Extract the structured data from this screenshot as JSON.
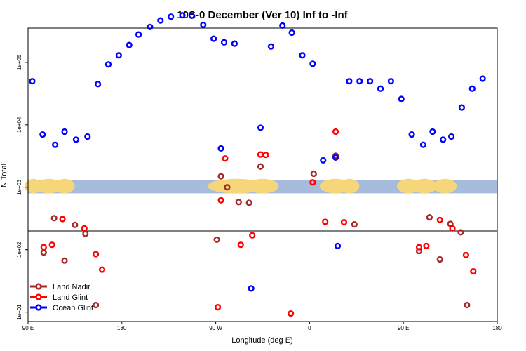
{
  "chart_data": {
    "type": "scatter",
    "title": "10S-0 December (Ver 10)   Inf to -Inf",
    "xlabel": "Longitude (deg E)",
    "ylabel": "N Total",
    "xlim": [
      90,
      540
    ],
    "ylog": true,
    "ylim_log10": [
      0.85,
      5.55
    ],
    "reference_line_y": 200,
    "map_strip": {
      "ymin": 800,
      "ymax": 1300
    },
    "xticks": [
      {
        "value": 90,
        "label": "90 E"
      },
      {
        "value": 180,
        "label": "180"
      },
      {
        "value": 270,
        "label": "90 W"
      },
      {
        "value": 360,
        "label": "0"
      },
      {
        "value": 450,
        "label": "90 E"
      },
      {
        "value": 540,
        "label": "180"
      }
    ],
    "yticks": [
      {
        "value": 10,
        "label": "1e+01"
      },
      {
        "value": 100,
        "label": "1e+02"
      },
      {
        "value": 1000,
        "label": "1e+03"
      },
      {
        "value": 10000,
        "label": "1e+04"
      },
      {
        "value": 100000,
        "label": "1e+05"
      }
    ],
    "series": [
      {
        "name": "Land Nadir",
        "color": "#a52a2a",
        "points": [
          [
            105,
            90
          ],
          [
            115,
            320
          ],
          [
            125,
            67
          ],
          [
            135,
            250
          ],
          [
            145,
            180
          ],
          [
            155,
            13
          ],
          [
            275,
            1500
          ],
          [
            281,
            1000
          ],
          [
            271,
            145
          ],
          [
            292,
            580
          ],
          [
            302,
            565
          ],
          [
            313,
            2150
          ],
          [
            364,
            1650
          ],
          [
            385,
            3200
          ],
          [
            403,
            255
          ],
          [
            465,
            95
          ],
          [
            475,
            330
          ],
          [
            485,
            70
          ],
          [
            495,
            260
          ],
          [
            505,
            190
          ],
          [
            511,
            13
          ]
        ]
      },
      {
        "name": "Land Glint",
        "color": "#ff0000",
        "points": [
          [
            105,
            110
          ],
          [
            113,
            120
          ],
          [
            123,
            310
          ],
          [
            144,
            220
          ],
          [
            155,
            85
          ],
          [
            161,
            48
          ],
          [
            272,
            12
          ],
          [
            275,
            620
          ],
          [
            279,
            2900
          ],
          [
            294,
            120
          ],
          [
            305,
            170
          ],
          [
            313,
            3350
          ],
          [
            318,
            3300
          ],
          [
            342,
            9.5
          ],
          [
            363,
            1200
          ],
          [
            375,
            280
          ],
          [
            385,
            7800
          ],
          [
            393,
            275
          ],
          [
            465,
            110
          ],
          [
            472,
            115
          ],
          [
            485,
            300
          ],
          [
            497,
            220
          ],
          [
            510,
            82
          ],
          [
            517,
            45
          ]
        ]
      },
      {
        "name": "Ocean Glint",
        "color": "#0000ff",
        "points": [
          [
            94,
            50000
          ],
          [
            104,
            7000
          ],
          [
            116,
            4800
          ],
          [
            125,
            7800
          ],
          [
            136,
            5800
          ],
          [
            147,
            6500
          ],
          [
            157,
            45000
          ],
          [
            167,
            93000
          ],
          [
            177,
            130000
          ],
          [
            187,
            190000
          ],
          [
            196,
            280000
          ],
          [
            207,
            370000
          ],
          [
            217,
            470000
          ],
          [
            227,
            540000
          ],
          [
            238,
            570000
          ],
          [
            247,
            560000
          ],
          [
            258,
            400000
          ],
          [
            268,
            240000
          ],
          [
            278,
            210000
          ],
          [
            288,
            200000
          ],
          [
            275,
            4200
          ],
          [
            304,
            24
          ],
          [
            313,
            9000
          ],
          [
            323,
            180000
          ],
          [
            334,
            390000
          ],
          [
            343,
            300000
          ],
          [
            353,
            130000
          ],
          [
            363,
            95000
          ],
          [
            373,
            2700
          ],
          [
            385,
            3000
          ],
          [
            387,
            115
          ],
          [
            398,
            50000
          ],
          [
            408,
            50000
          ],
          [
            418,
            50000
          ],
          [
            428,
            38000
          ],
          [
            438,
            50000
          ],
          [
            448,
            26000
          ],
          [
            458,
            7000
          ],
          [
            469,
            4800
          ],
          [
            478,
            7800
          ],
          [
            488,
            5800
          ],
          [
            496,
            6500
          ],
          [
            506,
            19000
          ],
          [
            516,
            38000
          ],
          [
            526,
            55000
          ]
        ]
      }
    ],
    "legend": {
      "placement": "bottom-left",
      "entries": [
        "Land Nadir",
        "Land Glint",
        "Ocean Glint"
      ]
    }
  }
}
